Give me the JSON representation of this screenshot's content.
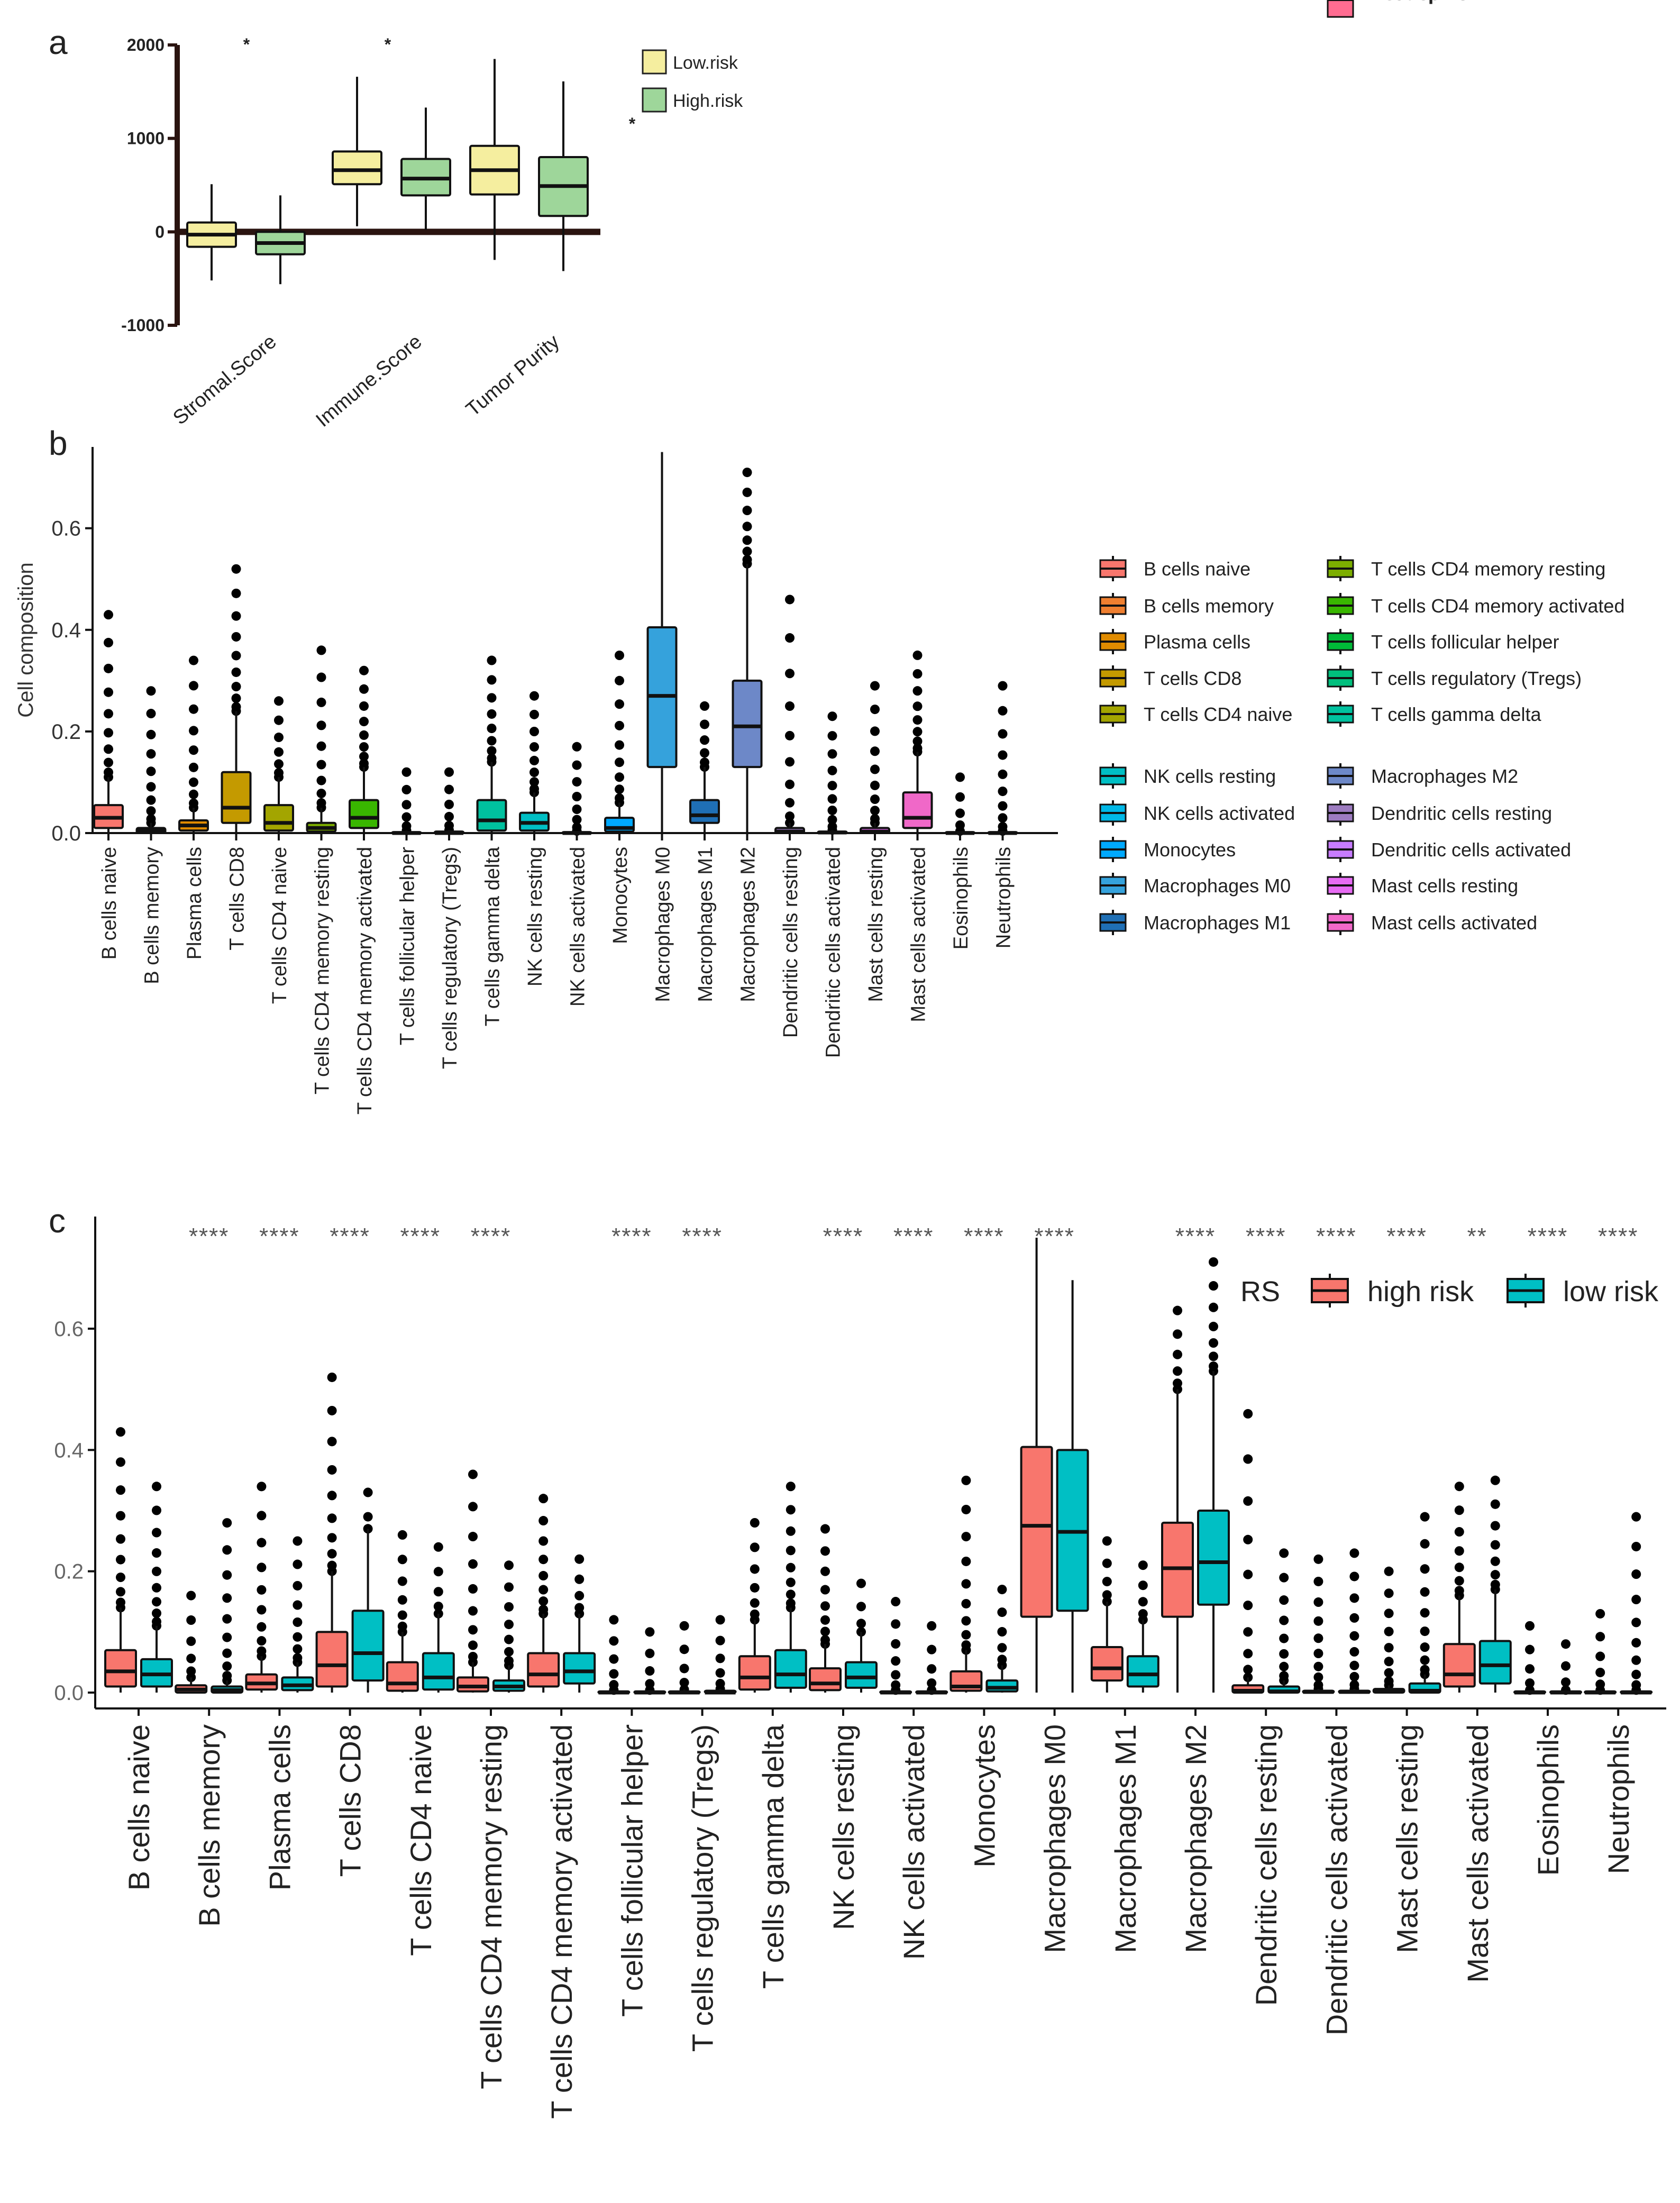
{
  "panels": {
    "a": {
      "letter": "a"
    },
    "b": {
      "letter": "b"
    },
    "c": {
      "letter": "c"
    }
  },
  "chart_data": [
    {
      "id": "a",
      "type": "box",
      "title": "",
      "ylabel": "",
      "ylim": [
        -1000,
        2000
      ],
      "yticks": [
        -1000,
        0,
        1000,
        2000
      ],
      "categories": [
        "Stromal.Score",
        "Immune.Score",
        "Tumor Purity"
      ],
      "significance": [
        "*",
        "*",
        "*"
      ],
      "legend": {
        "position": "top-right",
        "items": [
          {
            "name": "Low.risk",
            "color": "#f5ee9f"
          },
          {
            "name": "High.risk",
            "color": "#9ed69a"
          }
        ]
      },
      "series": [
        {
          "name": "Low.risk",
          "color": "#f5ee9f",
          "boxes": [
            {
              "min": -520,
              "q1": -160,
              "median": -30,
              "q3": 100,
              "max": 510
            },
            {
              "min": 60,
              "q1": 510,
              "median": 660,
              "q3": 860,
              "max": 1660
            },
            {
              "min": -300,
              "q1": 400,
              "median": 660,
              "q3": 920,
              "max": 1850
            }
          ]
        },
        {
          "name": "High.risk",
          "color": "#9ed69a",
          "boxes": [
            {
              "min": -560,
              "q1": -240,
              "median": -120,
              "q3": 0,
              "max": 390
            },
            {
              "min": 20,
              "q1": 390,
              "median": 570,
              "q3": 780,
              "max": 1330
            },
            {
              "min": -420,
              "q1": 170,
              "median": 490,
              "q3": 800,
              "max": 1610
            }
          ]
        }
      ]
    },
    {
      "id": "b",
      "type": "box",
      "ylabel": "Cell composition",
      "ylim": [
        0,
        0.76
      ],
      "yticks": [
        0.0,
        0.2,
        0.4,
        0.6
      ],
      "categories": [
        "B cells naive",
        "B cells memory",
        "Plasma cells",
        "T cells CD8",
        "T cells CD4 naive",
        "T cells CD4 memory resting",
        "T cells CD4 memory activated",
        "T cells follicular helper",
        "T cells regulatory (Tregs)",
        "T cells gamma delta",
        "NK cells resting",
        "NK cells activated",
        "Monocytes",
        "Macrophages M0",
        "Macrophages M1",
        "Macrophages M2",
        "Dendritic cells resting",
        "Dendritic cells activated",
        "Mast cells resting",
        "Mast cells activated",
        "Eosinophils",
        "Neutrophils"
      ],
      "colors": [
        "#f8766d",
        "#ef7f30",
        "#e08b00",
        "#c49a00",
        "#a3a500",
        "#7cae00",
        "#39b600",
        "#00ba38",
        "#00bf7d",
        "#00c19f",
        "#00bfc4",
        "#00b8e7",
        "#00a9ff",
        "#35a2dc",
        "#1f6fb5",
        "#6d88c8",
        "#9d7cc0",
        "#c77cff",
        "#e76bf3",
        "#f068c8",
        "#ff62bc",
        "#ff6c91"
      ],
      "boxes": [
        {
          "min": 0,
          "q1": 0.01,
          "median": 0.03,
          "q3": 0.055,
          "max": 0.11,
          "outlier_max": 0.43
        },
        {
          "min": 0,
          "q1": 0,
          "median": 0.005,
          "q3": 0.01,
          "max": 0.02,
          "outlier_max": 0.28
        },
        {
          "min": 0,
          "q1": 0.005,
          "median": 0.015,
          "q3": 0.025,
          "max": 0.05,
          "outlier_max": 0.34
        },
        {
          "min": 0,
          "q1": 0.02,
          "median": 0.05,
          "q3": 0.12,
          "max": 0.24,
          "outlier_max": 0.52
        },
        {
          "min": 0,
          "q1": 0.005,
          "median": 0.02,
          "q3": 0.055,
          "max": 0.11,
          "outlier_max": 0.26
        },
        {
          "min": 0,
          "q1": 0.003,
          "median": 0.01,
          "q3": 0.02,
          "max": 0.05,
          "outlier_max": 0.36
        },
        {
          "min": 0,
          "q1": 0.01,
          "median": 0.03,
          "q3": 0.065,
          "max": 0.13,
          "outlier_max": 0.32
        },
        {
          "min": 0,
          "q1": 0,
          "median": 0,
          "q3": 0.002,
          "max": 0.005,
          "outlier_max": 0.12
        },
        {
          "min": 0,
          "q1": 0,
          "median": 0,
          "q3": 0.003,
          "max": 0.006,
          "outlier_max": 0.12
        },
        {
          "min": 0,
          "q1": 0.005,
          "median": 0.025,
          "q3": 0.065,
          "max": 0.14,
          "outlier_max": 0.34
        },
        {
          "min": 0,
          "q1": 0.005,
          "median": 0.02,
          "q3": 0.04,
          "max": 0.08,
          "outlier_max": 0.27
        },
        {
          "min": 0,
          "q1": 0,
          "median": 0,
          "q3": 0.002,
          "max": 0.004,
          "outlier_max": 0.17
        },
        {
          "min": 0,
          "q1": 0.003,
          "median": 0.01,
          "q3": 0.03,
          "max": 0.06,
          "outlier_max": 0.35
        },
        {
          "min": 0,
          "q1": 0.13,
          "median": 0.27,
          "q3": 0.405,
          "max": 0.75,
          "outlier_max": 0.75
        },
        {
          "min": 0,
          "q1": 0.02,
          "median": 0.035,
          "q3": 0.065,
          "max": 0.13,
          "outlier_max": 0.25
        },
        {
          "min": 0,
          "q1": 0.13,
          "median": 0.21,
          "q3": 0.3,
          "max": 0.53,
          "outlier_max": 0.71
        },
        {
          "min": 0,
          "q1": 0,
          "median": 0.003,
          "q3": 0.01,
          "max": 0.02,
          "outlier_max": 0.46
        },
        {
          "min": 0,
          "q1": 0,
          "median": 0.001,
          "q3": 0.003,
          "max": 0.006,
          "outlier_max": 0.23
        },
        {
          "min": 0,
          "q1": 0,
          "median": 0.003,
          "q3": 0.01,
          "max": 0.02,
          "outlier_max": 0.29
        },
        {
          "min": 0,
          "q1": 0.01,
          "median": 0.03,
          "q3": 0.08,
          "max": 0.16,
          "outlier_max": 0.35
        },
        {
          "min": 0,
          "q1": 0,
          "median": 0,
          "q3": 0.002,
          "max": 0.004,
          "outlier_max": 0.11
        },
        {
          "min": 0,
          "q1": 0,
          "median": 0,
          "q3": 0.002,
          "max": 0.004,
          "outlier_max": 0.29
        }
      ]
    },
    {
      "id": "c",
      "type": "box",
      "ylabel": "",
      "ylim": [
        0,
        0.75
      ],
      "yticks": [
        0.0,
        0.2,
        0.4,
        0.6
      ],
      "legend": {
        "title": "RS",
        "position": "top-right",
        "items": [
          {
            "name": "high risk",
            "color": "#f8766d"
          },
          {
            "name": "low risk",
            "color": "#00bfc4"
          }
        ]
      },
      "categories": [
        "B cells naive",
        "B cells memory",
        "Plasma cells",
        "T cells CD8",
        "T cells CD4 naive",
        "T cells CD4 memory resting",
        "T cells CD4 memory activated",
        "T cells follicular helper",
        "T cells regulatory (Tregs)",
        "T cells gamma delta",
        "NK cells resting",
        "NK cells activated",
        "Monocytes",
        "Macrophages M0",
        "Macrophages M1",
        "Macrophages M2",
        "Dendritic cells resting",
        "Dendritic cells activated",
        "Mast cells resting",
        "Mast cells activated",
        "Eosinophils",
        "Neutrophils"
      ],
      "significance": [
        "",
        "****",
        "****",
        "****",
        "****",
        "****",
        "",
        "****",
        "****",
        "",
        "****",
        "****",
        "****",
        "****",
        "",
        "****",
        "****",
        "****",
        "****",
        "**",
        "****",
        "****"
      ],
      "series": [
        {
          "name": "high risk",
          "color": "#f8766d",
          "boxes": [
            {
              "min": 0,
              "q1": 0.01,
              "median": 0.035,
              "q3": 0.07,
              "max": 0.14,
              "outlier_max": 0.43
            },
            {
              "min": 0,
              "q1": 0,
              "median": 0.005,
              "q3": 0.012,
              "max": 0.025,
              "outlier_max": 0.16
            },
            {
              "min": 0,
              "q1": 0.005,
              "median": 0.015,
              "q3": 0.03,
              "max": 0.06,
              "outlier_max": 0.34
            },
            {
              "min": 0,
              "q1": 0.01,
              "median": 0.045,
              "q3": 0.1,
              "max": 0.2,
              "outlier_max": 0.52
            },
            {
              "min": 0,
              "q1": 0.003,
              "median": 0.015,
              "q3": 0.05,
              "max": 0.1,
              "outlier_max": 0.26
            },
            {
              "min": 0,
              "q1": 0.002,
              "median": 0.01,
              "q3": 0.025,
              "max": 0.05,
              "outlier_max": 0.36
            },
            {
              "min": 0,
              "q1": 0.01,
              "median": 0.03,
              "q3": 0.065,
              "max": 0.13,
              "outlier_max": 0.32
            },
            {
              "min": 0,
              "q1": 0,
              "median": 0,
              "q3": 0.002,
              "max": 0.004,
              "outlier_max": 0.12
            },
            {
              "min": 0,
              "q1": 0,
              "median": 0,
              "q3": 0.002,
              "max": 0.005,
              "outlier_max": 0.11
            },
            {
              "min": 0,
              "q1": 0.005,
              "median": 0.025,
              "q3": 0.06,
              "max": 0.12,
              "outlier_max": 0.28
            },
            {
              "min": 0,
              "q1": 0.004,
              "median": 0.015,
              "q3": 0.04,
              "max": 0.08,
              "outlier_max": 0.27
            },
            {
              "min": 0,
              "q1": 0,
              "median": 0,
              "q3": 0.002,
              "max": 0.004,
              "outlier_max": 0.15
            },
            {
              "min": 0,
              "q1": 0.003,
              "median": 0.01,
              "q3": 0.035,
              "max": 0.07,
              "outlier_max": 0.35
            },
            {
              "min": 0,
              "q1": 0.125,
              "median": 0.275,
              "q3": 0.405,
              "max": 0.75,
              "outlier_max": 0.75
            },
            {
              "min": 0,
              "q1": 0.02,
              "median": 0.04,
              "q3": 0.075,
              "max": 0.15,
              "outlier_max": 0.25
            },
            {
              "min": 0,
              "q1": 0.125,
              "median": 0.205,
              "q3": 0.28,
              "max": 0.5,
              "outlier_max": 0.63
            },
            {
              "min": 0,
              "q1": 0,
              "median": 0.003,
              "q3": 0.012,
              "max": 0.025,
              "outlier_max": 0.46
            },
            {
              "min": 0,
              "q1": 0,
              "median": 0.001,
              "q3": 0.003,
              "max": 0.006,
              "outlier_max": 0.22
            },
            {
              "min": 0,
              "q1": 0,
              "median": 0.002,
              "q3": 0.006,
              "max": 0.012,
              "outlier_max": 0.2
            },
            {
              "min": 0,
              "q1": 0.01,
              "median": 0.03,
              "q3": 0.08,
              "max": 0.16,
              "outlier_max": 0.34
            },
            {
              "min": 0,
              "q1": 0,
              "median": 0,
              "q3": 0.002,
              "max": 0.004,
              "outlier_max": 0.11
            },
            {
              "min": 0,
              "q1": 0,
              "median": 0,
              "q3": 0.002,
              "max": 0.004,
              "outlier_max": 0.13
            }
          ]
        },
        {
          "name": "low risk",
          "color": "#00bfc4",
          "boxes": [
            {
              "min": 0,
              "q1": 0.01,
              "median": 0.03,
              "q3": 0.055,
              "max": 0.11,
              "outlier_max": 0.34
            },
            {
              "min": 0,
              "q1": 0,
              "median": 0.004,
              "q3": 0.01,
              "max": 0.02,
              "outlier_max": 0.28
            },
            {
              "min": 0,
              "q1": 0.004,
              "median": 0.012,
              "q3": 0.025,
              "max": 0.05,
              "outlier_max": 0.25
            },
            {
              "min": 0,
              "q1": 0.02,
              "median": 0.065,
              "q3": 0.135,
              "max": 0.27,
              "outlier_max": 0.33
            },
            {
              "min": 0,
              "q1": 0.005,
              "median": 0.025,
              "q3": 0.065,
              "max": 0.13,
              "outlier_max": 0.24
            },
            {
              "min": 0,
              "q1": 0.003,
              "median": 0.01,
              "q3": 0.02,
              "max": 0.045,
              "outlier_max": 0.21
            },
            {
              "min": 0,
              "q1": 0.015,
              "median": 0.035,
              "q3": 0.065,
              "max": 0.13,
              "outlier_max": 0.22
            },
            {
              "min": 0,
              "q1": 0,
              "median": 0,
              "q3": 0.002,
              "max": 0.004,
              "outlier_max": 0.1
            },
            {
              "min": 0,
              "q1": 0,
              "median": 0,
              "q3": 0.003,
              "max": 0.006,
              "outlier_max": 0.12
            },
            {
              "min": 0,
              "q1": 0.008,
              "median": 0.03,
              "q3": 0.07,
              "max": 0.14,
              "outlier_max": 0.34
            },
            {
              "min": 0,
              "q1": 0.008,
              "median": 0.025,
              "q3": 0.05,
              "max": 0.1,
              "outlier_max": 0.18
            },
            {
              "min": 0,
              "q1": 0,
              "median": 0,
              "q3": 0.002,
              "max": 0.004,
              "outlier_max": 0.11
            },
            {
              "min": 0,
              "q1": 0.002,
              "median": 0.008,
              "q3": 0.02,
              "max": 0.045,
              "outlier_max": 0.17
            },
            {
              "min": 0,
              "q1": 0.135,
              "median": 0.265,
              "q3": 0.4,
              "max": 0.68,
              "outlier_max": 0.68
            },
            {
              "min": 0,
              "q1": 0.01,
              "median": 0.03,
              "q3": 0.06,
              "max": 0.12,
              "outlier_max": 0.21
            },
            {
              "min": 0,
              "q1": 0.145,
              "median": 0.215,
              "q3": 0.3,
              "max": 0.53,
              "outlier_max": 0.71
            },
            {
              "min": 0,
              "q1": 0,
              "median": 0.002,
              "q3": 0.01,
              "max": 0.02,
              "outlier_max": 0.23
            },
            {
              "min": 0,
              "q1": 0,
              "median": 0.001,
              "q3": 0.003,
              "max": 0.006,
              "outlier_max": 0.23
            },
            {
              "min": 0,
              "q1": 0,
              "median": 0.003,
              "q3": 0.015,
              "max": 0.03,
              "outlier_max": 0.29
            },
            {
              "min": 0,
              "q1": 0.015,
              "median": 0.045,
              "q3": 0.085,
              "max": 0.17,
              "outlier_max": 0.35
            },
            {
              "min": 0,
              "q1": 0,
              "median": 0,
              "q3": 0.002,
              "max": 0.004,
              "outlier_max": 0.08
            },
            {
              "min": 0,
              "q1": 0,
              "median": 0,
              "q3": 0.002,
              "max": 0.004,
              "outlier_max": 0.29
            }
          ]
        }
      ]
    }
  ]
}
